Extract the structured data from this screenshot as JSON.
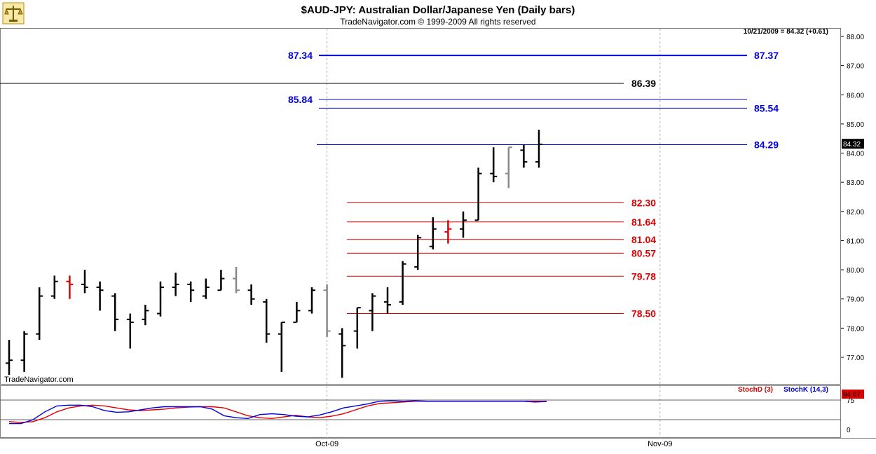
{
  "header": {
    "title": "$AUD-JPY:  Australian Dollar/Japanese Yen  (Daily bars)",
    "subtitle": "TradeNavigator.com © 1999-2009 All rights reserved",
    "quote": "10/21/2009 = 84.32 (+0.61)",
    "watermark": "TradeNavigator.com",
    "logo_icon": "scales-icon"
  },
  "colors": {
    "blue": "#0000e0",
    "red": "#e00000",
    "black": "#000000",
    "gray": "#888888",
    "stoch_d": "#e00000",
    "stoch_k": "#0000e0"
  },
  "chart_data": [
    {
      "type": "ohlc",
      "ylim": [
        76.2,
        88.3
      ],
      "yticks": [
        "88.00",
        "87.00",
        "86.00",
        "85.00",
        "84.00",
        "83.00",
        "82.00",
        "81.00",
        "80.00",
        "79.00",
        "78.00",
        "77.00"
      ],
      "xticks": [
        {
          "label": "Oct-09",
          "index": 21
        },
        {
          "label": "Nov-09",
          "index": 43
        }
      ],
      "last_price_label": "84.32",
      "last_price": 84.32,
      "bars": [
        {
          "o": 76.8,
          "h": 77.6,
          "l": 76.4,
          "c": 76.9,
          "color": "black"
        },
        {
          "o": 76.9,
          "h": 77.9,
          "l": 76.5,
          "c": 77.8,
          "color": "black"
        },
        {
          "o": 77.8,
          "h": 79.4,
          "l": 77.6,
          "c": 79.1,
          "color": "black"
        },
        {
          "o": 79.1,
          "h": 79.8,
          "l": 79.0,
          "c": 79.6,
          "color": "black"
        },
        {
          "o": 79.6,
          "h": 79.8,
          "l": 79.0,
          "c": 79.5,
          "color": "red"
        },
        {
          "o": 79.5,
          "h": 80.0,
          "l": 79.2,
          "c": 79.4,
          "color": "black"
        },
        {
          "o": 79.4,
          "h": 79.6,
          "l": 78.6,
          "c": 79.3,
          "color": "black"
        },
        {
          "o": 79.1,
          "h": 79.2,
          "l": 77.9,
          "c": 78.3,
          "color": "black"
        },
        {
          "o": 78.3,
          "h": 78.5,
          "l": 77.3,
          "c": 78.2,
          "color": "black"
        },
        {
          "o": 78.3,
          "h": 78.8,
          "l": 78.1,
          "c": 78.6,
          "color": "black"
        },
        {
          "o": 78.5,
          "h": 79.6,
          "l": 78.4,
          "c": 79.4,
          "color": "black"
        },
        {
          "o": 79.4,
          "h": 79.9,
          "l": 79.1,
          "c": 79.5,
          "color": "black"
        },
        {
          "o": 79.5,
          "h": 79.6,
          "l": 78.9,
          "c": 79.3,
          "color": "black"
        },
        {
          "o": 79.1,
          "h": 79.7,
          "l": 79.0,
          "c": 79.4,
          "color": "black"
        },
        {
          "o": 79.3,
          "h": 80.0,
          "l": 79.3,
          "c": 79.7,
          "color": "black"
        },
        {
          "o": 79.7,
          "h": 80.1,
          "l": 79.2,
          "c": 79.3,
          "color": "gray"
        },
        {
          "o": 79.3,
          "h": 79.5,
          "l": 78.8,
          "c": 79.0,
          "color": "black"
        },
        {
          "o": 78.9,
          "h": 79.0,
          "l": 77.5,
          "c": 77.8,
          "color": "black"
        },
        {
          "o": 77.8,
          "h": 78.2,
          "l": 76.5,
          "c": 78.2,
          "color": "black"
        },
        {
          "o": 78.2,
          "h": 78.9,
          "l": 78.2,
          "c": 78.6,
          "color": "black"
        },
        {
          "o": 78.6,
          "h": 79.4,
          "l": 78.5,
          "c": 79.3,
          "color": "black"
        },
        {
          "o": 79.3,
          "h": 79.5,
          "l": 77.7,
          "c": 77.9,
          "color": "gray"
        },
        {
          "o": 77.8,
          "h": 78.0,
          "l": 76.3,
          "c": 77.4,
          "color": "black"
        },
        {
          "o": 77.9,
          "h": 78.7,
          "l": 77.3,
          "c": 78.7,
          "color": "black"
        },
        {
          "o": 78.6,
          "h": 79.2,
          "l": 77.9,
          "c": 79.1,
          "color": "black"
        },
        {
          "o": 78.9,
          "h": 79.4,
          "l": 78.5,
          "c": 78.8,
          "color": "black"
        },
        {
          "o": 78.9,
          "h": 80.3,
          "l": 78.8,
          "c": 80.2,
          "color": "black"
        },
        {
          "o": 80.1,
          "h": 81.2,
          "l": 80.0,
          "c": 81.1,
          "color": "black"
        },
        {
          "o": 80.8,
          "h": 81.8,
          "l": 80.7,
          "c": 81.4,
          "color": "black"
        },
        {
          "o": 81.3,
          "h": 81.7,
          "l": 80.9,
          "c": 81.4,
          "color": "red"
        },
        {
          "o": 81.4,
          "h": 82.0,
          "l": 81.1,
          "c": 81.7,
          "color": "black"
        },
        {
          "o": 81.7,
          "h": 83.5,
          "l": 81.7,
          "c": 83.3,
          "color": "black"
        },
        {
          "o": 83.3,
          "h": 84.2,
          "l": 83.0,
          "c": 83.2,
          "color": "black"
        },
        {
          "o": 83.3,
          "h": 84.2,
          "l": 82.8,
          "c": 84.2,
          "color": "gray"
        },
        {
          "o": 84.1,
          "h": 84.3,
          "l": 83.5,
          "c": 83.7,
          "color": "black"
        },
        {
          "o": 83.7,
          "h": 84.8,
          "l": 83.5,
          "c": 84.3,
          "color": "black"
        }
      ],
      "levels": [
        {
          "value": 87.35,
          "label": "87.34",
          "label2": "87.37",
          "color": "blue"
        },
        {
          "value": 86.39,
          "label": "86.39",
          "color": "black"
        },
        {
          "value": 85.84,
          "label": "85.84",
          "color": "blue"
        },
        {
          "value": 85.54,
          "label": "85.54",
          "color": "blue"
        },
        {
          "value": 84.29,
          "label": "84.29",
          "color": "blue"
        },
        {
          "value": 82.3,
          "label": "82.30",
          "color": "red"
        },
        {
          "value": 81.64,
          "label": "81.64",
          "color": "red"
        },
        {
          "value": 81.04,
          "label": "81.04",
          "color": "red"
        },
        {
          "value": 80.57,
          "label": "80.57",
          "color": "red"
        },
        {
          "value": 79.78,
          "label": "79.78",
          "color": "red"
        },
        {
          "value": 78.5,
          "label": "78.50",
          "color": "red"
        }
      ]
    },
    {
      "type": "line",
      "ylim": [
        -10,
        110
      ],
      "yticks": [
        "75",
        "0"
      ],
      "reference_lines": [
        75,
        25
      ],
      "last_value_label": "94.67",
      "series": [
        {
          "name": "StochD (3)",
          "color": "red",
          "values": [
            20,
            18,
            20,
            30,
            45,
            55,
            60,
            62,
            60,
            55,
            50,
            48,
            50,
            52,
            55,
            57,
            58,
            58,
            55,
            45,
            35,
            30,
            28,
            32,
            36,
            32,
            30,
            34,
            40,
            50,
            60,
            66,
            68,
            70,
            72,
            72,
            72,
            72,
            72,
            72,
            72,
            72,
            72,
            72,
            72,
            72
          ]
        },
        {
          "name": "StochK (14,3)",
          "color": "blue",
          "values": [
            15,
            15,
            25,
            45,
            60,
            62,
            62,
            58,
            48,
            44,
            45,
            50,
            55,
            58,
            58,
            58,
            58,
            52,
            35,
            30,
            28,
            38,
            40,
            38,
            34,
            32,
            37,
            45,
            55,
            60,
            65,
            72,
            73,
            72,
            73,
            72,
            72,
            72,
            72,
            72,
            72,
            72,
            72,
            72,
            70,
            71
          ]
        }
      ]
    }
  ]
}
